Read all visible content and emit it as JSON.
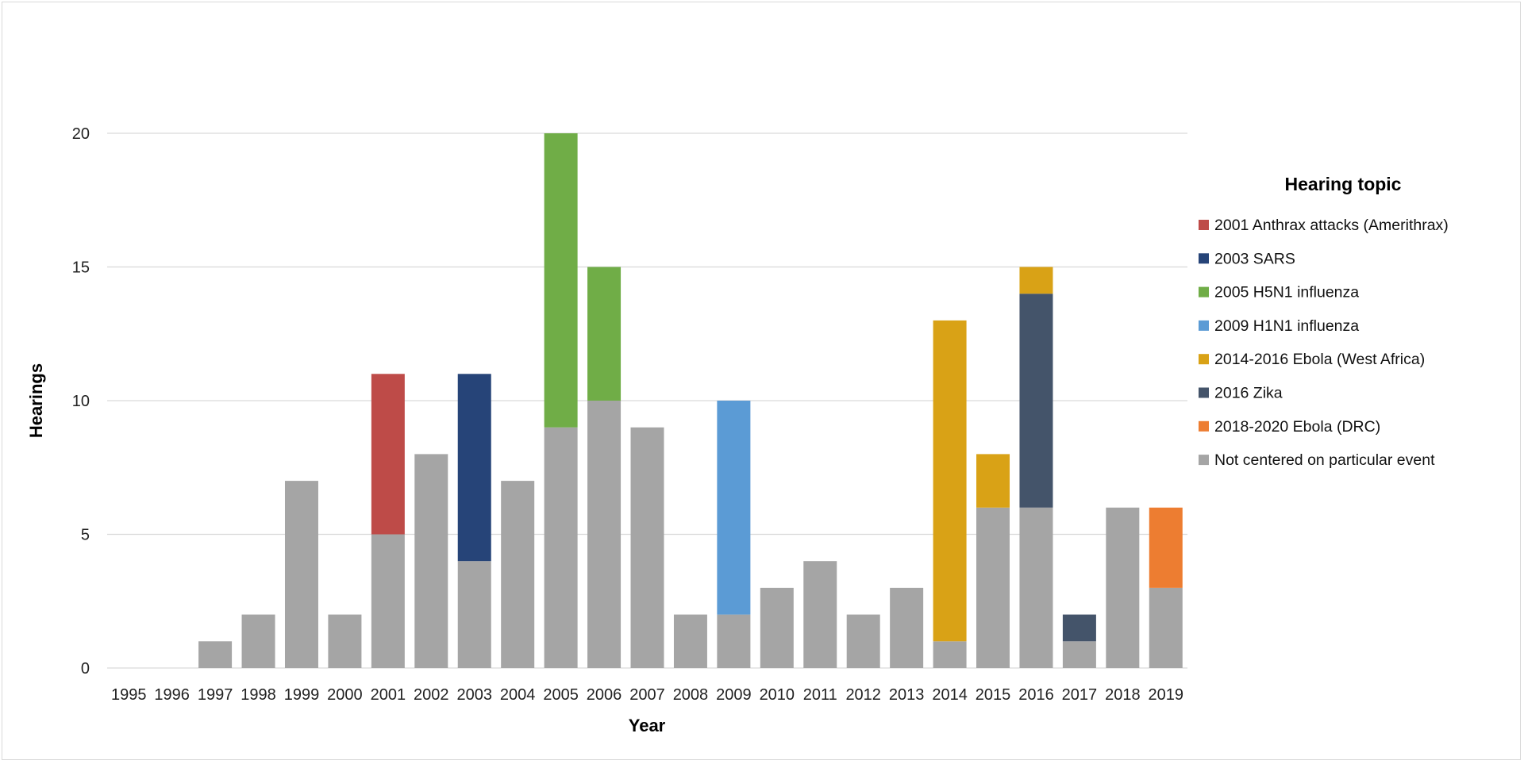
{
  "chart_data": {
    "type": "bar",
    "stacked": true,
    "title": "",
    "xlabel": "Year",
    "ylabel": "Hearings",
    "ylim": [
      0,
      20
    ],
    "yticks": [
      0,
      5,
      10,
      15,
      20
    ],
    "grid": true,
    "legend_title": "Hearing topic",
    "legend_position": "right",
    "categories": [
      "1995",
      "1996",
      "1997",
      "1998",
      "1999",
      "2000",
      "2001",
      "2002",
      "2003",
      "2004",
      "2005",
      "2006",
      "2007",
      "2008",
      "2009",
      "2010",
      "2011",
      "2012",
      "2013",
      "2014",
      "2015",
      "2016",
      "2017",
      "2018",
      "2019"
    ],
    "series": [
      {
        "name": "Not centered on particular event",
        "color": "#A5A5A5",
        "values": [
          0,
          0,
          1,
          2,
          7,
          2,
          5,
          8,
          4,
          7,
          9,
          10,
          9,
          2,
          2,
          3,
          4,
          2,
          3,
          1,
          6,
          6,
          1,
          6,
          3
        ]
      },
      {
        "name": "2001 Anthrax attacks (Amerithrax)",
        "color": "#BE4B48",
        "values": [
          0,
          0,
          0,
          0,
          0,
          0,
          6,
          0,
          0,
          0,
          0,
          0,
          0,
          0,
          0,
          0,
          0,
          0,
          0,
          0,
          0,
          0,
          0,
          0,
          0
        ]
      },
      {
        "name": "2003 SARS",
        "color": "#264478",
        "values": [
          0,
          0,
          0,
          0,
          0,
          0,
          0,
          0,
          7,
          0,
          0,
          0,
          0,
          0,
          0,
          0,
          0,
          0,
          0,
          0,
          0,
          0,
          0,
          0,
          0
        ]
      },
      {
        "name": "2005 H5N1 influenza",
        "color": "#70AD47",
        "values": [
          0,
          0,
          0,
          0,
          0,
          0,
          0,
          0,
          0,
          0,
          11,
          5,
          0,
          0,
          0,
          0,
          0,
          0,
          0,
          0,
          0,
          0,
          0,
          0,
          0
        ]
      },
      {
        "name": "2009 H1N1 influenza",
        "color": "#5B9BD5",
        "values": [
          0,
          0,
          0,
          0,
          0,
          0,
          0,
          0,
          0,
          0,
          0,
          0,
          0,
          0,
          8,
          0,
          0,
          0,
          0,
          0,
          0,
          0,
          0,
          0,
          0
        ]
      },
      {
        "name": "2016 Zika",
        "color": "#44546A",
        "values": [
          0,
          0,
          0,
          0,
          0,
          0,
          0,
          0,
          0,
          0,
          0,
          0,
          0,
          0,
          0,
          0,
          0,
          0,
          0,
          0,
          0,
          8,
          1,
          0,
          0
        ]
      },
      {
        "name": "2014-2016 Ebola (West Africa)",
        "color": "#D9A216",
        "values": [
          0,
          0,
          0,
          0,
          0,
          0,
          0,
          0,
          0,
          0,
          0,
          0,
          0,
          0,
          0,
          0,
          0,
          0,
          0,
          12,
          2,
          1,
          0,
          0,
          0
        ]
      },
      {
        "name": "2018-2020 Ebola (DRC)",
        "color": "#ED7D31",
        "values": [
          0,
          0,
          0,
          0,
          0,
          0,
          0,
          0,
          0,
          0,
          0,
          0,
          0,
          0,
          0,
          0,
          0,
          0,
          0,
          0,
          0,
          0,
          0,
          0,
          3
        ]
      }
    ],
    "legend_order": [
      "2001 Anthrax attacks (Amerithrax)",
      "2003 SARS",
      "2005 H5N1 influenza",
      "2009 H1N1 influenza",
      "2014-2016 Ebola (West Africa)",
      "2016 Zika",
      "2018-2020 Ebola (DRC)",
      "Not centered on particular event"
    ]
  }
}
